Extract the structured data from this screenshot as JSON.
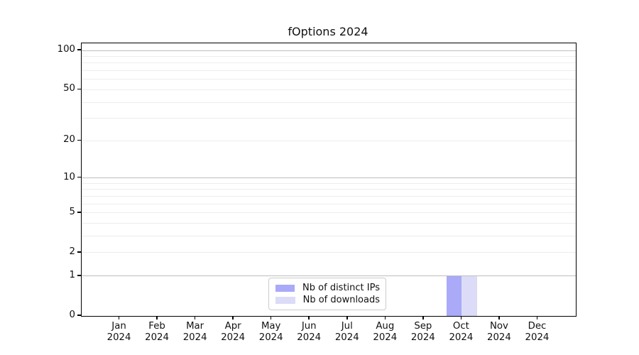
{
  "chart_data": {
    "type": "bar",
    "title": "fOptions 2024",
    "categories": [
      "Jan 2024",
      "Feb 2024",
      "Mar 2024",
      "Apr 2024",
      "May 2024",
      "Jun 2024",
      "Jul 2024",
      "Aug 2024",
      "Sep 2024",
      "Oct 2024",
      "Nov 2024",
      "Dec 2024"
    ],
    "series": [
      {
        "name": "Nb of distinct IPs",
        "color": "#aaaaf8",
        "values": [
          0,
          0,
          0,
          0,
          0,
          0,
          0,
          0,
          0,
          1,
          0,
          0
        ]
      },
      {
        "name": "Nb of downloads",
        "color": "#dcdcf8",
        "values": [
          0,
          0,
          0,
          0,
          0,
          0,
          0,
          0,
          0,
          1,
          0,
          0
        ]
      }
    ],
    "yscale": "log1p",
    "ylim": [
      0,
      113
    ],
    "yticks": [
      0,
      1,
      2,
      5,
      10,
      20,
      50,
      100
    ],
    "major_gridlines": [
      1,
      10,
      100
    ],
    "minor_gridlines": [
      2,
      3,
      4,
      5,
      6,
      7,
      8,
      9,
      20,
      30,
      40,
      50,
      60,
      70,
      80,
      90
    ],
    "grid": true,
    "legend_position": "bottom-center"
  },
  "colors": {
    "background": "#ffffff",
    "axis": "#000000",
    "text": "#111111",
    "grid_major": "#bdbdbd",
    "grid_minor": "#ededed",
    "legend_border": "#cccccc"
  }
}
